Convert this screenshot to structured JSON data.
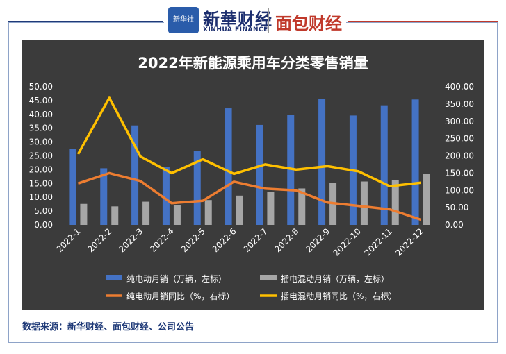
{
  "header": {
    "logo_text": "新华社",
    "brand_cn": "新華财经",
    "brand_en": "XINHUA FINANCE",
    "brand2": "面包财经"
  },
  "source": "数据来源：新华财经、面包财经、公司公告",
  "colors": {
    "bev": "#4472c4",
    "phev": "#a6a6a6",
    "bev_yoy": "#ed7d31",
    "phev_yoy": "#ffc000",
    "background": "#3b3b3b"
  },
  "chart_data": {
    "type": "bar",
    "title": "2022年新能源乘用车分类零售销量",
    "categories": [
      "2022-1",
      "2022-2",
      "2022-3",
      "2022-4",
      "2022-5",
      "2022-6",
      "2022-7",
      "2022-8",
      "2022-9",
      "2022-10",
      "2022-11",
      "2022-12"
    ],
    "y_left": {
      "min": 0,
      "max": 50,
      "ticks": [
        "0.00",
        "5.00",
        "10.00",
        "15.00",
        "20.00",
        "25.00",
        "30.00",
        "35.00",
        "40.00",
        "45.00",
        "50.00"
      ]
    },
    "y_right": {
      "min": 0,
      "max": 400,
      "ticks": [
        "0.00",
        "50.00",
        "100.00",
        "150.00",
        "200.00",
        "250.00",
        "300.00",
        "350.00",
        "400.00"
      ]
    },
    "series": [
      {
        "name": "纯电动月销（万辆，左标）",
        "type": "bar",
        "axis": "left",
        "values": [
          27.5,
          20.5,
          36.0,
          21.0,
          26.8,
          42.2,
          36.2,
          39.8,
          45.7,
          39.6,
          43.3,
          45.4
        ]
      },
      {
        "name": "插电混动月销（万辆，左标）",
        "type": "bar",
        "axis": "left",
        "values": [
          7.6,
          6.7,
          8.4,
          7.1,
          9.0,
          10.6,
          12.0,
          13.2,
          15.3,
          15.7,
          16.2,
          18.4
        ]
      },
      {
        "name": "纯电动月销同比（%，右标）",
        "type": "line",
        "axis": "right",
        "values": [
          120,
          150,
          127,
          63,
          70,
          125,
          105,
          100,
          65,
          55,
          45,
          15
        ]
      },
      {
        "name": "插电混动月销同比（%，右标）",
        "type": "line",
        "axis": "right",
        "values": [
          205,
          368,
          198,
          150,
          190,
          148,
          175,
          160,
          170,
          155,
          112,
          122
        ]
      }
    ],
    "legend_position": "bottom",
    "grid": false
  }
}
